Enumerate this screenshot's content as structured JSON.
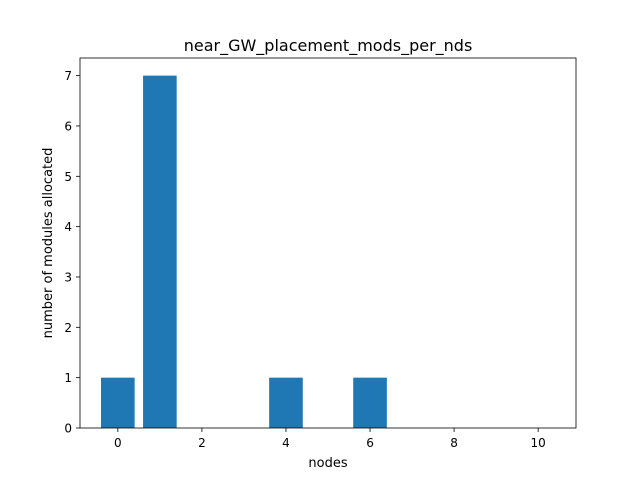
{
  "chart_data": {
    "type": "bar",
    "title": "near_GW_placement_mods_per_nds",
    "xlabel": "nodes",
    "ylabel": "number of modules allocated",
    "x": [
      0,
      1,
      2,
      3,
      4,
      5,
      6,
      7,
      8,
      9,
      10
    ],
    "values": [
      1,
      7,
      0,
      0,
      1,
      0,
      1,
      0,
      0,
      0,
      0
    ],
    "xlim": [
      -0.9,
      10.9
    ],
    "ylim": [
      0,
      7.35
    ],
    "xticks": [
      0,
      2,
      4,
      6,
      8,
      10
    ],
    "yticks": [
      0,
      1,
      2,
      3,
      4,
      5,
      6,
      7
    ],
    "bar_color": "#1f77b4",
    "grid": false,
    "legend": "none"
  }
}
